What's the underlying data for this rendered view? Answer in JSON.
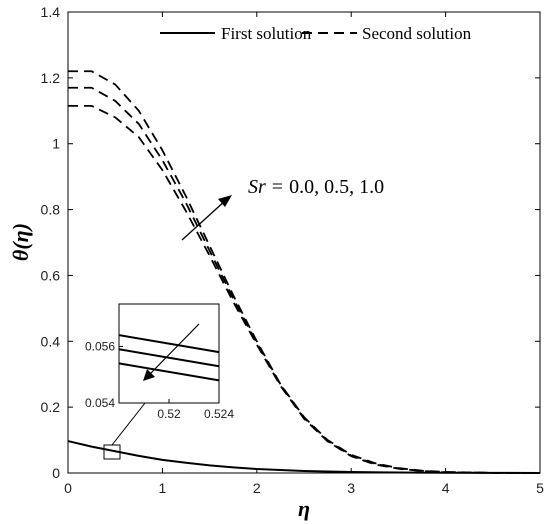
{
  "chart_data": {
    "type": "line",
    "xlabel": "η",
    "ylabel": "θ(η)",
    "xlim": [
      0,
      5
    ],
    "ylim": [
      0,
      1.4
    ],
    "xticks": [
      "0",
      "1",
      "2",
      "3",
      "4",
      "5"
    ],
    "yticks": [
      "0",
      "0.2",
      "0.4",
      "0.6",
      "0.8",
      "1",
      "1.2",
      "1.4"
    ],
    "grid": false,
    "legend_position": "top",
    "legend": [
      {
        "label": "First solution",
        "style": "solid"
      },
      {
        "label": "Second solution",
        "style": "dashed"
      }
    ],
    "annotation": {
      "symbol": "Sr",
      "values": "0.0, 0.5, 1.0"
    },
    "first_solution": {
      "x": [
        0,
        0.25,
        0.5,
        0.75,
        1,
        1.25,
        1.5,
        1.75,
        2,
        2.5,
        3,
        3.5,
        4,
        4.5,
        5
      ],
      "y": [
        0.097,
        0.08,
        0.066,
        0.052,
        0.04,
        0.031,
        0.023,
        0.017,
        0.012,
        0.006,
        0.003,
        0.0015,
        0.0007,
        0.0003,
        0.0001
      ]
    },
    "second_solution": [
      {
        "x": [
          0,
          0.25,
          0.5,
          0.75,
          1,
          1.25,
          1.5,
          1.75,
          2,
          2.25,
          2.5,
          2.75,
          3,
          3.25,
          3.5,
          3.75,
          4,
          4.5,
          5
        ],
        "y": [
          1.22,
          1.22,
          1.18,
          1.1,
          0.98,
          0.84,
          0.69,
          0.54,
          0.4,
          0.27,
          0.17,
          0.1,
          0.055,
          0.03,
          0.015,
          0.007,
          0.003,
          0.0005,
          0.0001
        ]
      },
      {
        "x": [
          0,
          0.25,
          0.5,
          0.75,
          1,
          1.25,
          1.5,
          1.75,
          2,
          2.25,
          2.5,
          2.75,
          3,
          3.25,
          3.5,
          3.75,
          4,
          4.5,
          5
        ],
        "y": [
          1.17,
          1.17,
          1.13,
          1.06,
          0.95,
          0.82,
          0.675,
          0.53,
          0.395,
          0.268,
          0.168,
          0.098,
          0.053,
          0.028,
          0.014,
          0.006,
          0.0025,
          0.0004,
          0.0001
        ]
      },
      {
        "x": [
          0,
          0.25,
          0.5,
          0.75,
          1,
          1.25,
          1.5,
          1.75,
          2,
          2.25,
          2.5,
          2.75,
          3,
          3.25,
          3.5,
          3.75,
          4,
          4.5,
          5
        ],
        "y": [
          1.115,
          1.115,
          1.08,
          1.02,
          0.92,
          0.795,
          0.66,
          0.52,
          0.39,
          0.265,
          0.165,
          0.096,
          0.051,
          0.026,
          0.013,
          0.006,
          0.002,
          0.0003,
          0.0001
        ]
      }
    ],
    "inset": {
      "xlim": [
        0.516,
        0.524
      ],
      "ylim": [
        0.054,
        0.0575
      ],
      "xticks": [
        "0.52",
        "0.524"
      ],
      "yticks": [
        "0.054",
        "0.056"
      ],
      "lines": [
        {
          "x": [
            0.516,
            0.524
          ],
          "y": [
            0.0564,
            0.0558
          ]
        },
        {
          "x": [
            0.516,
            0.524
          ],
          "y": [
            0.0559,
            0.0553
          ]
        },
        {
          "x": [
            0.516,
            0.524
          ],
          "y": [
            0.0554,
            0.0548
          ]
        }
      ]
    }
  }
}
